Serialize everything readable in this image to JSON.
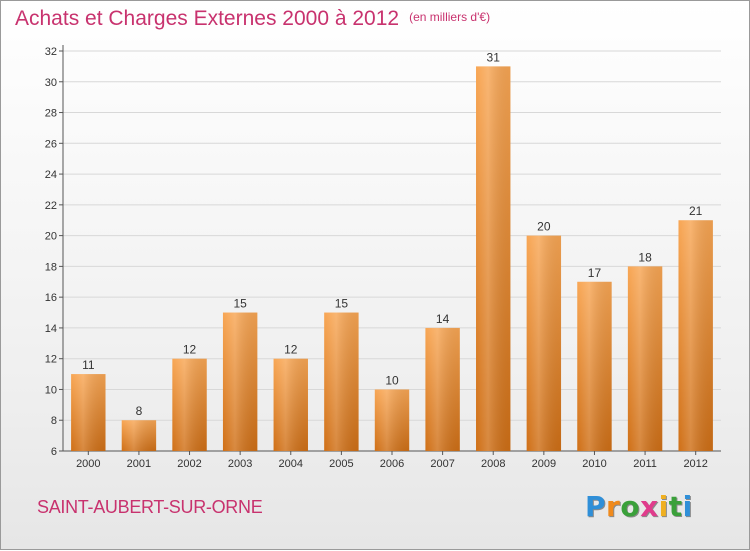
{
  "title": "Achats et Charges Externes 2000 à 2012",
  "unit_label": "(en milliers d'€)",
  "commune": "SAINT-AUBERT-SUR-ORNE",
  "logo": {
    "letters": [
      "P",
      "r",
      "o",
      "x",
      "i",
      "t",
      "i"
    ],
    "colors": [
      "#2f8fd8",
      "#f08a1c",
      "#3aa03a",
      "#e03c8c",
      "#f0b020",
      "#3aa03a",
      "#2f8fd8"
    ]
  },
  "colors": {
    "title": "#c8326e",
    "bar_light": "#f8a654",
    "bar_dark": "#cf6f16",
    "grid": "#d8d8d8"
  },
  "chart_data": {
    "type": "bar",
    "title": "Achats et Charges Externes 2000 à 2012",
    "categories": [
      "2000",
      "2001",
      "2002",
      "2003",
      "2004",
      "2005",
      "2006",
      "2007",
      "2008",
      "2009",
      "2010",
      "2011",
      "2012"
    ],
    "values": [
      11,
      8,
      12,
      15,
      12,
      15,
      10,
      14,
      31,
      20,
      17,
      18,
      21
    ],
    "data_labels": [
      "11",
      "8",
      "12",
      "15",
      "12",
      "15",
      "10",
      "14",
      "31",
      "20",
      "17",
      "18",
      "21"
    ],
    "ylim": [
      6,
      32
    ],
    "yticks": [
      "6",
      "8",
      "10",
      "12",
      "14",
      "16",
      "18",
      "20",
      "22",
      "24",
      "26",
      "28",
      "30",
      "32"
    ],
    "grid": true
  }
}
